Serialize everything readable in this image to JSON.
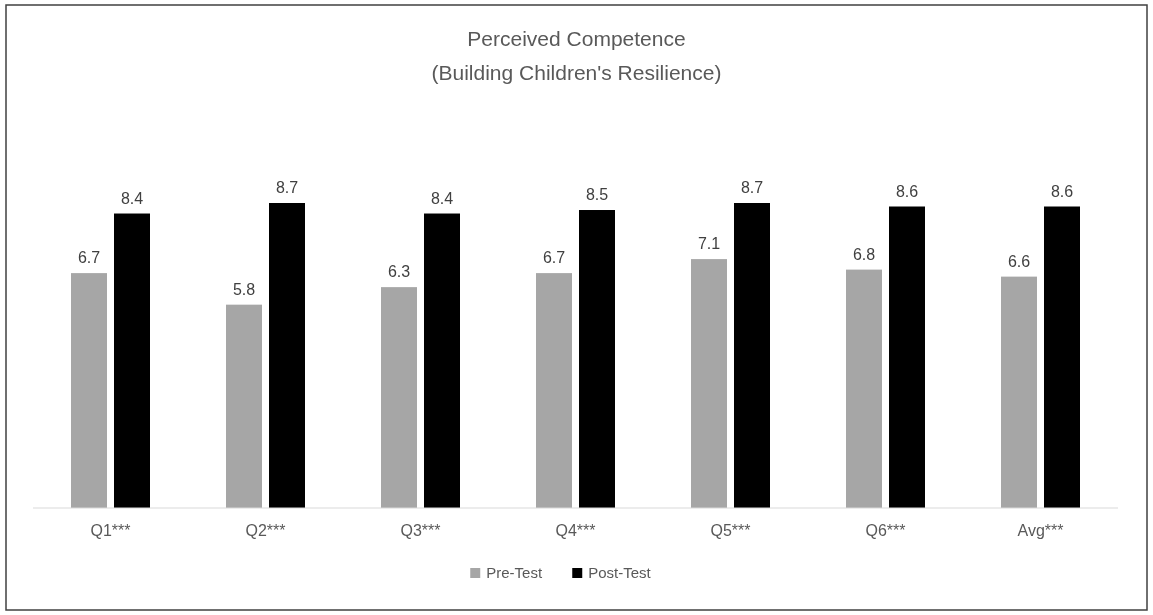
{
  "chart_data": {
    "type": "bar",
    "title": "Perceived Competence",
    "subtitle": "(Building Children's Resilience)",
    "categories": [
      "Q1***",
      "Q2***",
      "Q3***",
      "Q4***",
      "Q5***",
      "Q6***",
      "Avg***"
    ],
    "series": [
      {
        "name": "Pre-Test",
        "color": "#a6a6a6",
        "values": [
          6.7,
          5.8,
          6.3,
          6.7,
          7.1,
          6.8,
          6.6
        ]
      },
      {
        "name": "Post-Test",
        "color": "#000000",
        "values": [
          8.4,
          8.7,
          8.4,
          8.5,
          8.7,
          8.6,
          8.6
        ]
      }
    ],
    "data_labels": true,
    "legend": "bottom",
    "grid": false
  }
}
